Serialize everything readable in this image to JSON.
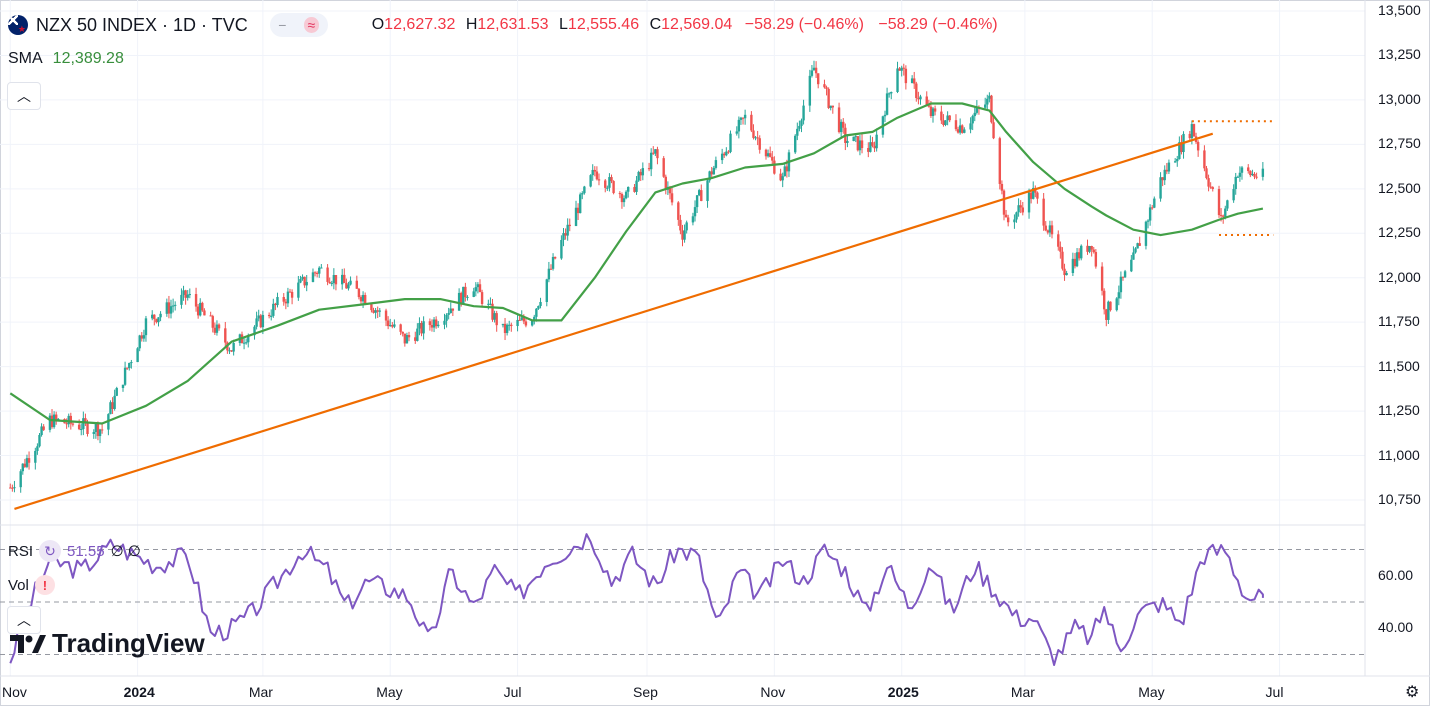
{
  "header": {
    "symbol": "NZX 50 INDEX · 1D · TVC",
    "toggle_left": "−",
    "toggle_right": "≈",
    "o_label": "O",
    "o_value": "12,627.32",
    "h_label": "H",
    "h_value": "12,631.53",
    "l_label": "L",
    "l_value": "12,555.46",
    "c_label": "C",
    "c_value": "12,569.04",
    "change": "−58.29 (−0.46%)",
    "change2": "−58.29 (−0.46%)"
  },
  "sma": {
    "label": "SMA",
    "value": "12,389.28"
  },
  "rsi": {
    "label": "RSI",
    "value": "51.55",
    "extra": "∅ ∅"
  },
  "vol": {
    "label": "Vol"
  },
  "logo": {
    "text": "TradingView"
  },
  "icons": {
    "flag": "nz-flag-icon",
    "collapse": "chevron-up-icon",
    "warning": "warning-icon",
    "settings": "settings-gear-icon",
    "logo": "tradingview-logo-icon",
    "rsi": "rsi-source-icon"
  },
  "colors": {
    "up": "#26a69a",
    "down": "#ef5350",
    "sma": "#43a047",
    "trend": "#ef6c00",
    "rsi": "#7e57c2",
    "text_red": "#f23645",
    "grid": "#f0f3fa"
  },
  "chart_data": [
    {
      "type": "candlestick",
      "title": "NZX 50 INDEX · 1D · TVC",
      "y_axis_ticks": [
        "13,500",
        "13,250",
        "13,000",
        "12,750",
        "12,500",
        "12,250",
        "12,000",
        "11,750",
        "11,500",
        "11,250",
        "11,000",
        "10,750"
      ],
      "ylim": [
        10600,
        13500
      ],
      "x_axis_ticks": [
        "Nov",
        "2024",
        "Mar",
        "May",
        "Jul",
        "Sep",
        "Nov",
        "2025",
        "Mar",
        "May",
        "Jul"
      ],
      "x_axis_bold": [
        1,
        7
      ],
      "x": [
        "2023-11-01",
        "2023-11-20",
        "2023-12-15",
        "2024-01-05",
        "2024-01-25",
        "2024-02-15",
        "2024-03-08",
        "2024-03-28",
        "2024-04-18",
        "2024-05-08",
        "2024-05-25",
        "2024-06-10",
        "2024-06-24",
        "2024-07-08",
        "2024-07-22",
        "2024-08-07",
        "2024-08-22",
        "2024-09-05",
        "2024-09-18",
        "2024-10-02",
        "2024-10-18",
        "2024-11-05",
        "2024-11-20",
        "2024-12-05",
        "2024-12-18",
        "2024-12-30",
        "2025-01-15",
        "2025-01-30",
        "2025-02-12",
        "2025-02-20",
        "2025-03-05",
        "2025-03-20",
        "2025-04-02",
        "2025-04-09",
        "2025-04-22",
        "2025-05-05",
        "2025-05-20",
        "2025-06-03",
        "2025-06-11",
        "2025-06-23"
      ],
      "close": [
        10820,
        11200,
        11150,
        11750,
        11900,
        11600,
        11850,
        12050,
        11900,
        11650,
        11780,
        11960,
        11700,
        11780,
        12200,
        12600,
        12450,
        12700,
        12250,
        12600,
        12900,
        12550,
        13180,
        12780,
        12720,
        13200,
        12920,
        12850,
        13000,
        12300,
        12480,
        12050,
        12200,
        11800,
        12100,
        12550,
        12850,
        12320,
        12600,
        12569
      ],
      "series": [
        {
          "name": "SMA",
          "values": [
            11350,
            11200,
            11180,
            11280,
            11420,
            11640,
            11730,
            11820,
            11850,
            11880,
            11880,
            11840,
            11830,
            11760,
            11760,
            12000,
            12260,
            12480,
            12530,
            12560,
            12620,
            12640,
            12700,
            12800,
            12820,
            12900,
            12980,
            12980,
            12940,
            12820,
            12650,
            12500,
            12400,
            12350,
            12270,
            12240,
            12270,
            12330,
            12360,
            12389
          ]
        }
      ],
      "annotations": [
        {
          "type": "trendline",
          "from": [
            "2023-11-03",
            10700
          ],
          "to": [
            "2025-05-30",
            12810
          ]
        },
        {
          "type": "horizontal-dotted",
          "value": 12880,
          "from": "2025-05-20",
          "to": "2025-06-28"
        },
        {
          "type": "horizontal-dotted",
          "value": 12240,
          "from": "2025-06-02",
          "to": "2025-06-28"
        }
      ]
    },
    {
      "type": "line",
      "name": "RSI",
      "y_axis_ticks": [
        "60.00",
        "40.00"
      ],
      "ylim": [
        24,
        82
      ],
      "levels": [
        70,
        50,
        30
      ],
      "x": [
        "2023-11-01",
        "2023-11-08",
        "2023-11-20",
        "2023-12-05",
        "2023-12-20",
        "2024-01-10",
        "2024-01-25",
        "2024-02-05",
        "2024-02-15",
        "2024-02-25",
        "2024-03-08",
        "2024-03-20",
        "2024-04-01",
        "2024-04-10",
        "2024-04-20",
        "2024-05-01",
        "2024-05-10",
        "2024-05-20",
        "2024-05-30",
        "2024-06-10",
        "2024-06-20",
        "2024-07-01",
        "2024-07-15",
        "2024-07-25",
        "2024-08-05",
        "2024-08-15",
        "2024-08-25",
        "2024-09-05",
        "2024-09-15",
        "2024-09-25",
        "2024-10-05",
        "2024-10-15",
        "2024-10-25",
        "2024-11-05",
        "2024-11-15",
        "2024-11-25",
        "2024-12-05",
        "2024-12-15",
        "2024-12-25",
        "2025-01-05",
        "2025-01-15",
        "2025-01-25",
        "2025-02-05",
        "2025-02-15",
        "2025-02-25",
        "2025-03-05",
        "2025-03-15",
        "2025-03-25",
        "2025-04-02",
        "2025-04-08",
        "2025-04-15",
        "2025-04-25",
        "2025-05-05",
        "2025-05-15",
        "2025-05-25",
        "2025-06-05",
        "2025-06-15",
        "2025-06-23"
      ],
      "values": [
        28,
        45,
        66,
        62,
        72,
        64,
        68,
        38,
        40,
        46,
        58,
        70,
        62,
        48,
        58,
        55,
        52,
        34,
        62,
        48,
        62,
        52,
        66,
        70,
        76,
        58,
        68,
        56,
        70,
        68,
        40,
        62,
        52,
        66,
        58,
        70,
        62,
        46,
        64,
        48,
        66,
        46,
        64,
        54,
        44,
        44,
        28,
        40,
        36,
        48,
        32,
        46,
        50,
        42,
        68,
        70,
        52,
        51.55
      ]
    }
  ]
}
